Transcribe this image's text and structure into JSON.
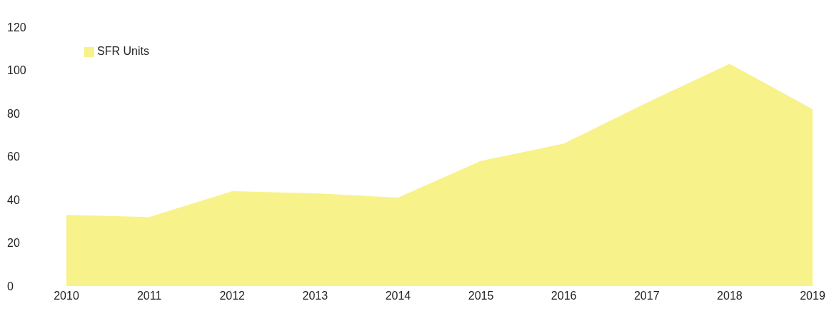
{
  "chart_data": {
    "type": "area",
    "categories": [
      "2010",
      "2011",
      "2012",
      "2013",
      "2014",
      "2015",
      "2016",
      "2017",
      "2018",
      "2019"
    ],
    "series": [
      {
        "name": "SFR Units",
        "color": "#f8f28a",
        "values": [
          33,
          32,
          44,
          43,
          41,
          58,
          66,
          85,
          103,
          82
        ]
      }
    ],
    "ylim": [
      0,
      120
    ],
    "yticks": [
      0,
      20,
      40,
      60,
      80,
      100,
      120
    ],
    "grid": false,
    "legend": "top left"
  }
}
